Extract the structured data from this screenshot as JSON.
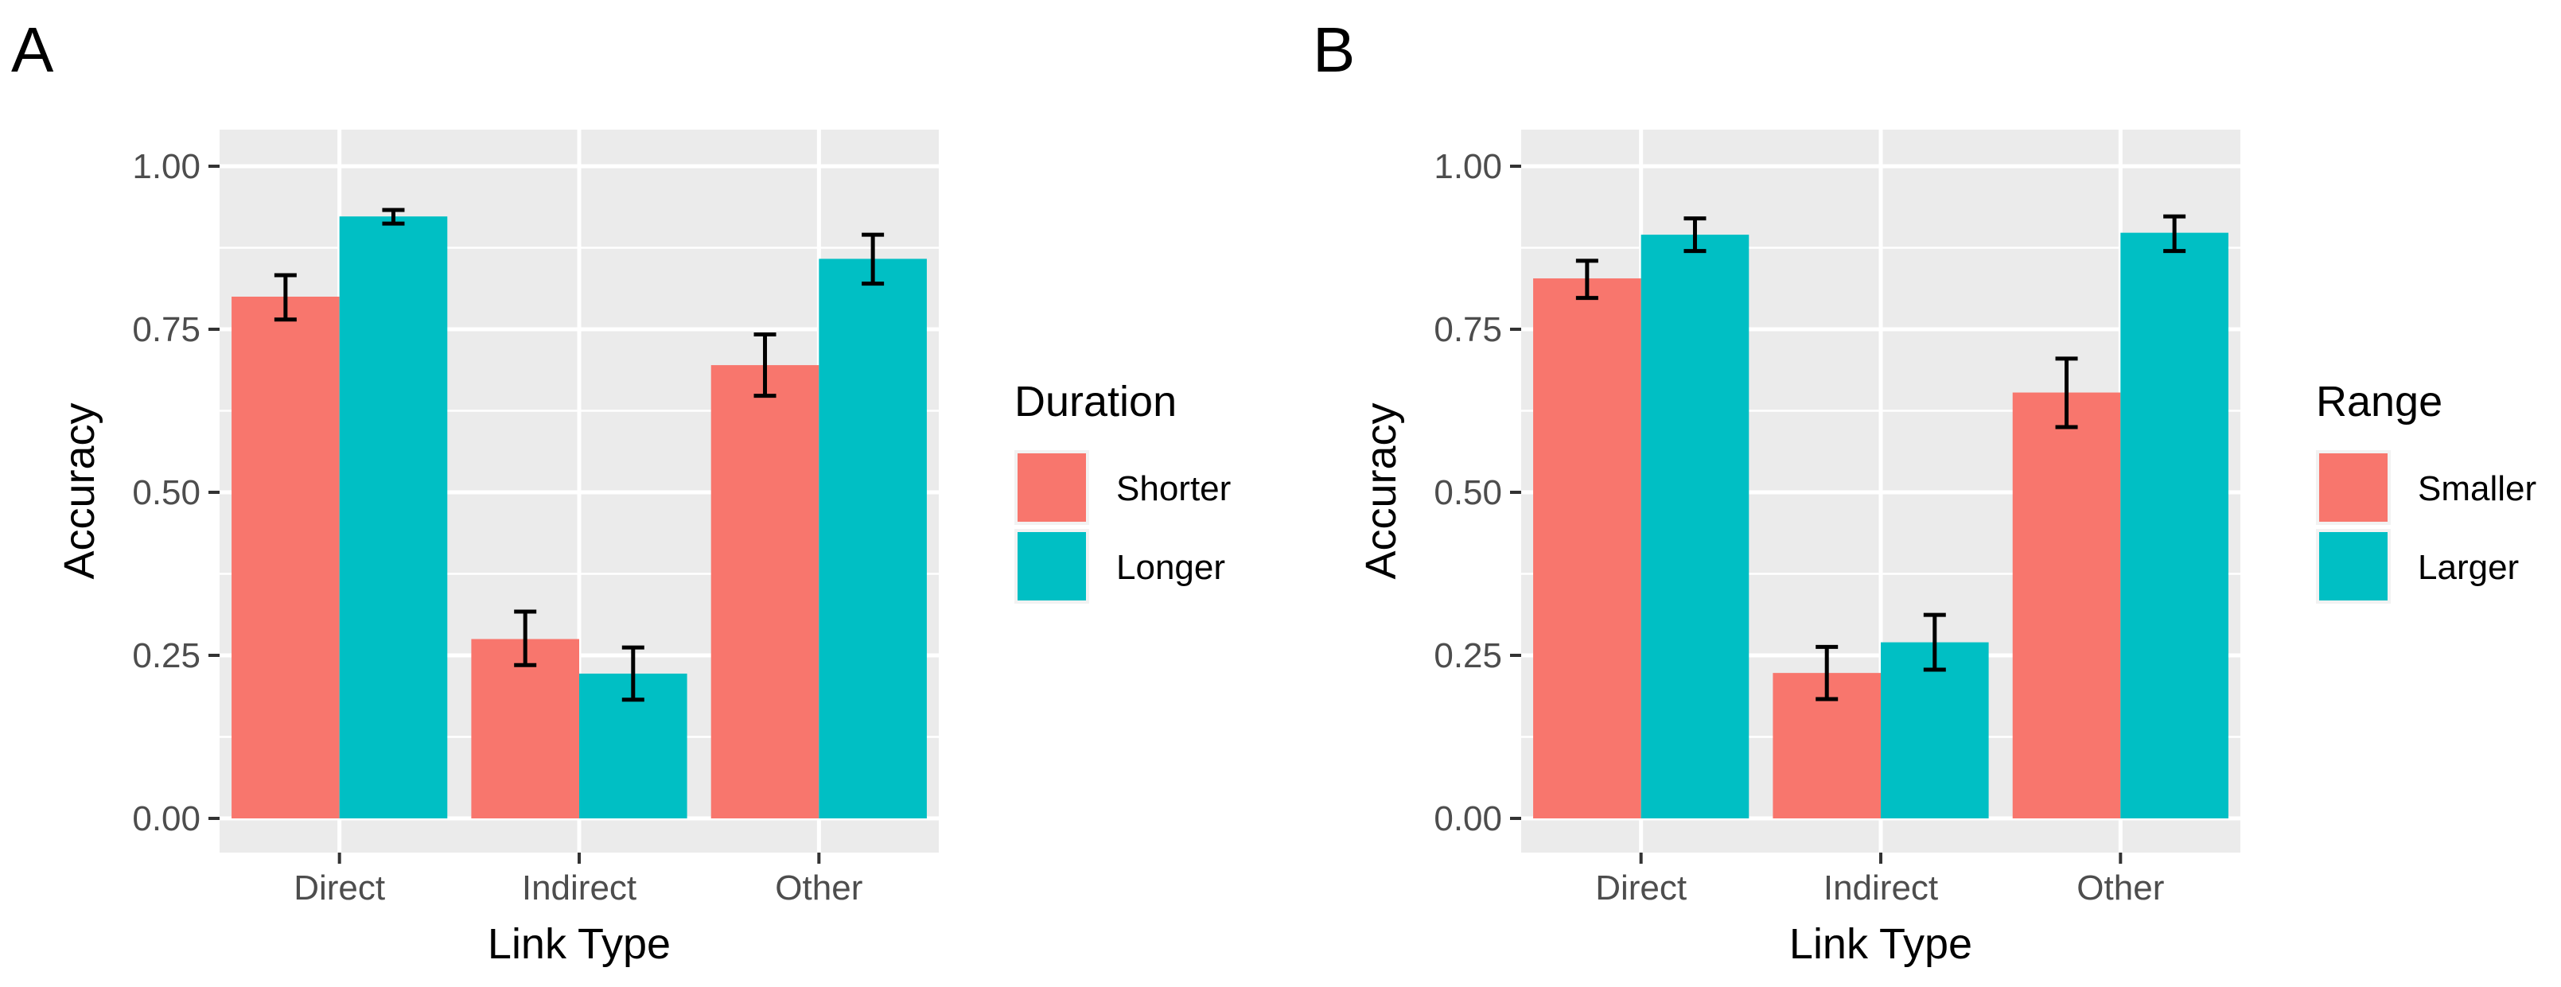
{
  "colors": {
    "panel_background": "#EBEBEB",
    "grid_major": "#FFFFFF",
    "tick_text": "#4D4D4D",
    "axis_title": "#000000",
    "error_bar": "#000000"
  },
  "chart_data": [
    {
      "type": "bar",
      "panel_label": "A",
      "xlabel": "Link Type",
      "ylabel": "Accuracy",
      "ylim": [
        0,
        1.05
      ],
      "yticks": [
        "0.00",
        "0.25",
        "0.50",
        "0.75",
        "1.00"
      ],
      "categories": [
        "Direct",
        "Indirect",
        "Other"
      ],
      "legend_title": "Duration",
      "grid": true,
      "series": [
        {
          "name": "Shorter",
          "color": "#F8766D",
          "values": [
            0.8,
            0.275,
            0.695
          ],
          "err_low": [
            0.765,
            0.235,
            0.648
          ],
          "err_high": [
            0.833,
            0.317,
            0.742
          ]
        },
        {
          "name": "Longer",
          "color": "#00BFC4",
          "values": [
            0.923,
            0.222,
            0.858
          ],
          "err_low": [
            0.912,
            0.182,
            0.82
          ],
          "err_high": [
            0.933,
            0.262,
            0.895
          ]
        }
      ]
    },
    {
      "type": "bar",
      "panel_label": "B",
      "xlabel": "Link Type",
      "ylabel": "Accuracy",
      "ylim": [
        0,
        1.05
      ],
      "yticks": [
        "0.00",
        "0.25",
        "0.50",
        "0.75",
        "1.00"
      ],
      "categories": [
        "Direct",
        "Indirect",
        "Other"
      ],
      "legend_title": "Range",
      "grid": true,
      "series": [
        {
          "name": "Smaller",
          "color": "#F8766D",
          "values": [
            0.828,
            0.223,
            0.653
          ],
          "err_low": [
            0.798,
            0.183,
            0.6
          ],
          "err_high": [
            0.855,
            0.263,
            0.705
          ]
        },
        {
          "name": "Larger",
          "color": "#00BFC4",
          "values": [
            0.895,
            0.27,
            0.898
          ],
          "err_low": [
            0.87,
            0.228,
            0.87
          ],
          "err_high": [
            0.92,
            0.312,
            0.923
          ]
        }
      ]
    }
  ]
}
